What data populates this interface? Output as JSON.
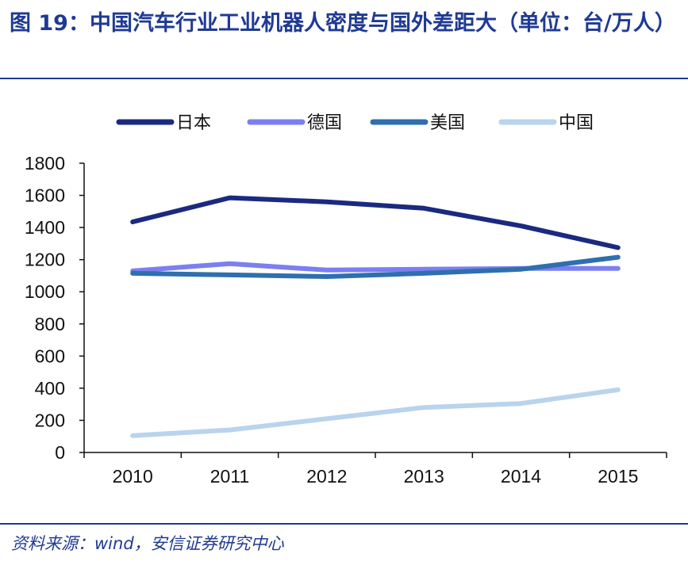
{
  "figure": {
    "title": "图 19：中国汽车行业工业机器人密度与国外差距大（单位：台/万人）",
    "source": "资料来源：wind，安信证券研究中心"
  },
  "colors": {
    "title": "#1f3a93",
    "japan": "#1b2a80",
    "germany": "#7b7ff0",
    "usa": "#2f6fae",
    "china": "#b9d4ec",
    "axis": "#111111"
  },
  "chart_data": {
    "type": "line",
    "title": "中国汽车行业工业机器人密度与国外差距大",
    "xlabel": "",
    "ylabel": "台/万人",
    "categories": [
      "2010",
      "2011",
      "2012",
      "2013",
      "2014",
      "2015"
    ],
    "ylim": [
      0,
      1800
    ],
    "yticks": [
      0,
      200,
      400,
      600,
      800,
      1000,
      1200,
      1400,
      1600,
      1800
    ],
    "legend_position": "top",
    "grid": false,
    "series": [
      {
        "name": "日本",
        "color": "#1b2a80",
        "values": [
          1435,
          1585,
          1560,
          1520,
          1410,
          1275
        ]
      },
      {
        "name": "德国",
        "color": "#7b7ff0",
        "values": [
          1130,
          1175,
          1135,
          1140,
          1145,
          1145
        ]
      },
      {
        "name": "美国",
        "color": "#2f6fae",
        "values": [
          1115,
          1105,
          1095,
          1115,
          1140,
          1215
        ]
      },
      {
        "name": "中国",
        "color": "#b9d4ec",
        "values": [
          105,
          140,
          210,
          280,
          305,
          390
        ]
      }
    ]
  }
}
